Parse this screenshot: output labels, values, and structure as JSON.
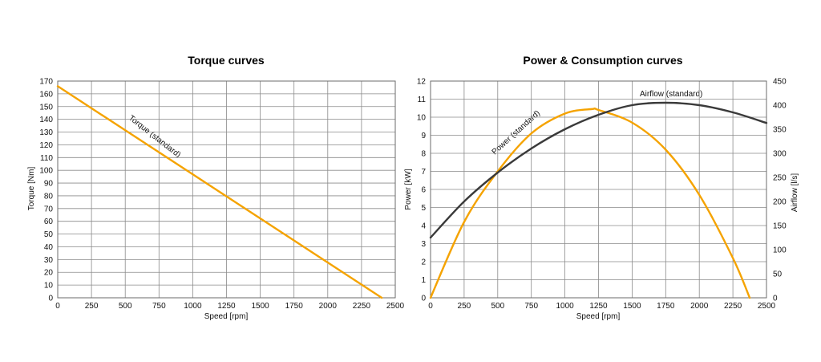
{
  "colors": {
    "orange": "#F5A300",
    "dark": "#3a3a3a",
    "grid": "#8a8a8a"
  },
  "chart_data": [
    {
      "type": "line",
      "title": "Torque curves",
      "xlabel": "Speed [rpm]",
      "ylabel": "Torque [Nm]",
      "xlim": [
        0,
        2500
      ],
      "ylim": [
        0,
        170
      ],
      "x_ticks": [
        0,
        250,
        500,
        750,
        1000,
        1250,
        1500,
        1750,
        2000,
        2250,
        2500
      ],
      "y_ticks": [
        0,
        10,
        20,
        30,
        40,
        50,
        60,
        70,
        80,
        90,
        100,
        110,
        120,
        130,
        140,
        150,
        160,
        170
      ],
      "grid": true,
      "series": [
        {
          "name": "Torque (standard)",
          "color": "#F5A300",
          "x": [
            0,
            2400
          ],
          "y": [
            166,
            0
          ]
        }
      ]
    },
    {
      "type": "line",
      "title": "Power & Consumption curves",
      "xlabel": "Speed [rpm]",
      "ylabel": "Power [kW]",
      "y2label": "Airflow [l/s]",
      "xlim": [
        0,
        2500
      ],
      "ylim": [
        0,
        12
      ],
      "y2lim": [
        0,
        450
      ],
      "x_ticks": [
        0,
        250,
        500,
        750,
        1000,
        1250,
        1500,
        1750,
        2000,
        2250,
        2500
      ],
      "y_ticks": [
        0,
        1,
        2,
        3,
        4,
        5,
        6,
        7,
        8,
        9,
        10,
        11,
        12
      ],
      "y2_ticks": [
        0,
        50,
        100,
        150,
        200,
        250,
        300,
        350,
        400,
        450
      ],
      "grid": true,
      "series": [
        {
          "name": "Power (standard)",
          "axis": "left",
          "color": "#F5A300",
          "x": [
            0,
            250,
            500,
            750,
            1000,
            1200,
            1250,
            1500,
            1750,
            2000,
            2250,
            2375
          ],
          "y": [
            0,
            4.2,
            7.0,
            9.1,
            10.2,
            10.45,
            10.4,
            9.7,
            8.2,
            5.7,
            2.2,
            0
          ]
        },
        {
          "name": "Airflow (standard)",
          "axis": "right",
          "color": "#3a3a3a",
          "x": [
            0,
            250,
            500,
            750,
            1000,
            1250,
            1500,
            1750,
            2000,
            2250,
            2500
          ],
          "y": [
            125,
            200,
            260,
            310,
            350,
            380,
            400,
            405,
            400,
            385,
            363
          ]
        }
      ]
    }
  ]
}
